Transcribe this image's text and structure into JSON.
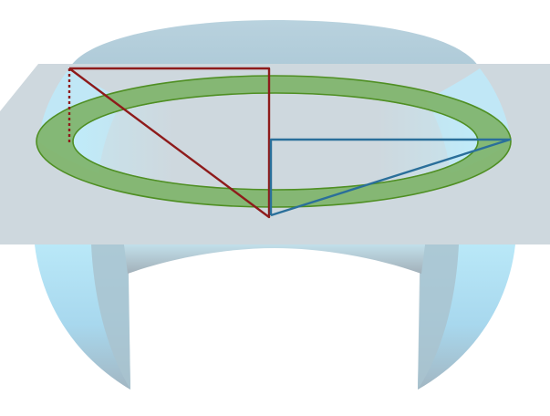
{
  "colors": {
    "background": "#ffffff",
    "bowl_light": "#b4e4f6",
    "bowl_mid": "#a7d2e6",
    "bowl_dark": "#9fb2bd",
    "bowl_top": "#b7cfdb",
    "plane": "#ced8de",
    "ring_fill": "#7fb46a",
    "ring_stroke": "#4f8f23",
    "ring_hole_fill": "#cfeaf3",
    "red_triangle": "#8e1b1b",
    "blue_triangle": "#2a6f9a"
  },
  "elements": {
    "bowl_surface": "3d-bowl-surface",
    "cutting_plane": "horizontal-plane",
    "ring": "green-annulus",
    "red_triangle": "red-right-triangle",
    "blue_triangle": "blue-right-triangle"
  }
}
